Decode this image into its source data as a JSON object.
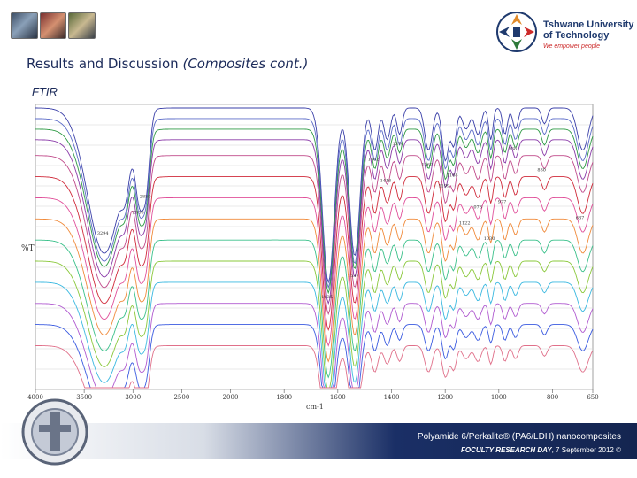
{
  "header": {
    "university_line1": "Tshwane University",
    "university_line2": "of Technology",
    "tagline": "We empower people"
  },
  "slide": {
    "title": "Results and Discussion",
    "title_paren": "(Composites cont.)",
    "section": "FTIR"
  },
  "footer": {
    "title": "Polyamide 6/Perkalite® (PA6/LDH) nanocomposites",
    "event": "FOCULTY RESEARCH DAY",
    "date": ", 7 September 2012 ©"
  },
  "colors": {
    "heading": "#1c2b5a",
    "footer_dark": "#142550",
    "footer_text": "#ffffff",
    "tagline": "#cc2a2a"
  },
  "chart_data": {
    "type": "line",
    "title": "",
    "xlabel": "cm-1",
    "ylabel": "%T",
    "xlim": [
      4000,
      650
    ],
    "x_tick_labels": [
      "4000",
      "3500",
      "3000",
      "2500",
      "2000",
      "1800",
      "1600",
      "1400",
      "1200",
      "1000",
      "800",
      "650"
    ],
    "grid": true,
    "legend": "none",
    "peak_wavenumbers": [
      3294,
      3074,
      2930,
      2859,
      1635,
      1537,
      1462,
      1416,
      1370,
      1262,
      1199,
      1168,
      1122,
      1078,
      1030,
      977,
      938,
      830,
      687,
      580
    ],
    "peak_widths": [
      170,
      40,
      45,
      35,
      22,
      20,
      12,
      12,
      10,
      14,
      12,
      10,
      14,
      12,
      8,
      9,
      10,
      10,
      20,
      18
    ],
    "series": [
      {
        "color": "#3a3fa8",
        "baseline": 1.0,
        "depths": [
          0.55,
          0.12,
          0.3,
          0.22,
          0.66,
          0.56,
          0.16,
          0.12,
          0.1,
          0.16,
          0.2,
          0.14,
          0.08,
          0.1,
          0.12,
          0.1,
          0.08,
          0.06,
          0.16,
          0.12
        ]
      },
      {
        "color": "#5c6cc8",
        "baseline": 0.96,
        "depths": [
          0.54,
          0.12,
          0.29,
          0.21,
          0.64,
          0.55,
          0.16,
          0.12,
          0.1,
          0.16,
          0.19,
          0.14,
          0.08,
          0.1,
          0.12,
          0.1,
          0.08,
          0.06,
          0.16,
          0.12
        ]
      },
      {
        "color": "#2e9a44",
        "baseline": 0.92,
        "depths": [
          0.52,
          0.11,
          0.28,
          0.21,
          0.62,
          0.53,
          0.15,
          0.11,
          0.09,
          0.15,
          0.19,
          0.13,
          0.07,
          0.09,
          0.11,
          0.09,
          0.07,
          0.06,
          0.15,
          0.11
        ]
      },
      {
        "color": "#8a3aa8",
        "baseline": 0.88,
        "depths": [
          0.52,
          0.11,
          0.28,
          0.2,
          0.62,
          0.52,
          0.15,
          0.11,
          0.09,
          0.15,
          0.18,
          0.13,
          0.07,
          0.09,
          0.11,
          0.09,
          0.07,
          0.06,
          0.15,
          0.11
        ]
      },
      {
        "color": "#c04a8a",
        "baseline": 0.82,
        "depths": [
          0.5,
          0.11,
          0.27,
          0.2,
          0.6,
          0.5,
          0.14,
          0.11,
          0.09,
          0.14,
          0.18,
          0.13,
          0.07,
          0.09,
          0.1,
          0.09,
          0.07,
          0.05,
          0.14,
          0.1
        ]
      },
      {
        "color": "#d02a3a",
        "baseline": 0.74,
        "depths": [
          0.48,
          0.1,
          0.26,
          0.19,
          0.58,
          0.48,
          0.14,
          0.1,
          0.09,
          0.14,
          0.17,
          0.12,
          0.07,
          0.08,
          0.1,
          0.08,
          0.07,
          0.05,
          0.14,
          0.1
        ]
      },
      {
        "color": "#e0509a",
        "baseline": 0.66,
        "depths": [
          0.46,
          0.1,
          0.25,
          0.18,
          0.56,
          0.46,
          0.13,
          0.1,
          0.08,
          0.13,
          0.16,
          0.12,
          0.06,
          0.08,
          0.1,
          0.08,
          0.06,
          0.05,
          0.13,
          0.09
        ]
      },
      {
        "color": "#f08a3a",
        "baseline": 0.58,
        "depths": [
          0.44,
          0.1,
          0.24,
          0.18,
          0.54,
          0.44,
          0.13,
          0.1,
          0.08,
          0.13,
          0.16,
          0.11,
          0.06,
          0.08,
          0.09,
          0.08,
          0.06,
          0.05,
          0.13,
          0.09
        ]
      },
      {
        "color": "#3ac08a",
        "baseline": 0.5,
        "depths": [
          0.42,
          0.09,
          0.23,
          0.17,
          0.52,
          0.42,
          0.12,
          0.09,
          0.08,
          0.12,
          0.15,
          0.11,
          0.06,
          0.07,
          0.09,
          0.07,
          0.06,
          0.05,
          0.12,
          0.09
        ]
      },
      {
        "color": "#8ac83a",
        "baseline": 0.42,
        "depths": [
          0.4,
          0.09,
          0.22,
          0.16,
          0.5,
          0.4,
          0.12,
          0.09,
          0.07,
          0.12,
          0.14,
          0.1,
          0.06,
          0.07,
          0.08,
          0.07,
          0.06,
          0.04,
          0.12,
          0.08
        ]
      },
      {
        "color": "#3ab8e0",
        "baseline": 0.34,
        "depths": [
          0.38,
          0.08,
          0.21,
          0.15,
          0.48,
          0.38,
          0.11,
          0.08,
          0.07,
          0.11,
          0.14,
          0.1,
          0.05,
          0.07,
          0.08,
          0.07,
          0.05,
          0.04,
          0.11,
          0.08
        ]
      },
      {
        "color": "#b05ad0",
        "baseline": 0.26,
        "depths": [
          0.36,
          0.08,
          0.2,
          0.15,
          0.46,
          0.36,
          0.11,
          0.08,
          0.07,
          0.11,
          0.13,
          0.09,
          0.05,
          0.06,
          0.08,
          0.06,
          0.05,
          0.04,
          0.11,
          0.08
        ]
      },
      {
        "color": "#3a5ae0",
        "baseline": 0.18,
        "depths": [
          0.34,
          0.08,
          0.19,
          0.14,
          0.44,
          0.34,
          0.1,
          0.08,
          0.06,
          0.1,
          0.13,
          0.09,
          0.05,
          0.06,
          0.07,
          0.06,
          0.05,
          0.04,
          0.1,
          0.07
        ]
      },
      {
        "color": "#e0708a",
        "baseline": 0.1,
        "depths": [
          0.32,
          0.07,
          0.18,
          0.13,
          0.42,
          0.32,
          0.1,
          0.07,
          0.06,
          0.1,
          0.12,
          0.09,
          0.05,
          0.06,
          0.07,
          0.06,
          0.05,
          0.04,
          0.1,
          0.07
        ]
      }
    ],
    "peak_annotations": [
      {
        "text": "3294",
        "x": 3294,
        "y": 0.52
      },
      {
        "text": "2930",
        "x": 2930,
        "y": 0.6
      },
      {
        "text": "2859",
        "x": 2859,
        "y": 0.66
      },
      {
        "text": "1635",
        "x": 1635,
        "y": 0.28
      },
      {
        "text": "1537",
        "x": 1537,
        "y": 0.36
      },
      {
        "text": "1462",
        "x": 1462,
        "y": 0.8
      },
      {
        "text": "1416",
        "x": 1416,
        "y": 0.72
      },
      {
        "text": "1370",
        "x": 1370,
        "y": 0.86
      },
      {
        "text": "1262",
        "x": 1262,
        "y": 0.78
      },
      {
        "text": "1199",
        "x": 1199,
        "y": 0.7
      },
      {
        "text": "1168",
        "x": 1168,
        "y": 0.74
      },
      {
        "text": "1122",
        "x": 1122,
        "y": 0.56
      },
      {
        "text": "1078",
        "x": 1078,
        "y": 0.62
      },
      {
        "text": "1030",
        "x": 1030,
        "y": 0.5
      },
      {
        "text": "977",
        "x": 977,
        "y": 0.64
      },
      {
        "text": "938",
        "x": 938,
        "y": 0.84
      },
      {
        "text": "830",
        "x": 830,
        "y": 0.76
      },
      {
        "text": "687",
        "x": 687,
        "y": 0.58
      }
    ]
  }
}
